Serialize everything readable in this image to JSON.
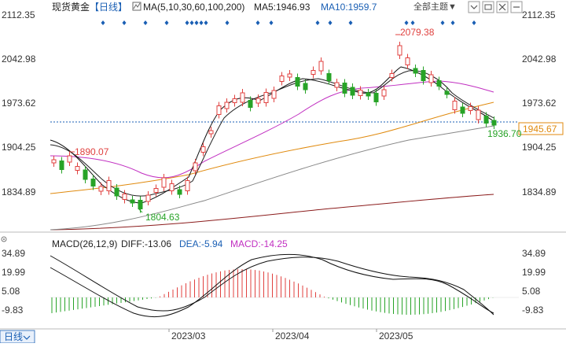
{
  "header": {
    "instrument": "现货黄金",
    "period_bracket": "【日线】",
    "ma_spec": "MA(5,10,30,60,100,200)",
    "ma5": "MA5:1946.93",
    "ma10": "MA10:1959.7",
    "theme_dropdown": "全部主题▼"
  },
  "price_axis": {
    "ticks": [
      "2112.35",
      "2042.98",
      "1973.62",
      "1904.25",
      "1834.89"
    ],
    "current_price": "1945.67"
  },
  "annotations": {
    "high": "2079.38",
    "mid_high": "1890.07",
    "low": "1804.63",
    "last_low": "1936.70"
  },
  "macd_header": {
    "label": "MACD(26,12,9)",
    "diff": "DIFF:-13.06",
    "dea": "DEA:-5.94",
    "macd": "MACD:-14.25"
  },
  "macd_axis": {
    "ticks": [
      "34.89",
      "19.99",
      "5.08",
      "-9.83"
    ]
  },
  "footer": {
    "period_button": "日线",
    "dates": [
      "2023/03",
      "2023/04",
      "2023/05"
    ]
  },
  "colors": {
    "up": "#e0413f",
    "down": "#27a327",
    "ma5": "#111111",
    "ma10": "#222222",
    "ma30": "#c12fc1",
    "ma60": "#e08a0e",
    "ma100": "#888888",
    "ma200": "#8b1c1c",
    "accent_blue": "#1a5fb4",
    "dashed_price": "#1a5fb4"
  }
}
